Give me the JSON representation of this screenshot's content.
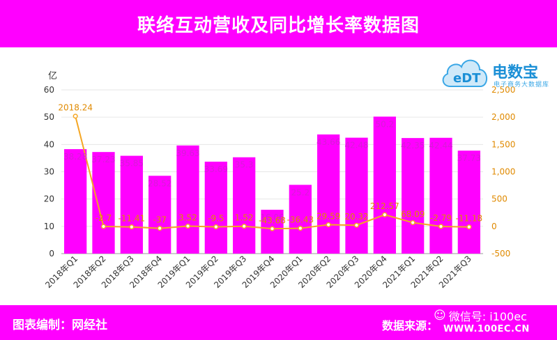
{
  "header": {
    "title": "联络互动营收及同比增长率数据图"
  },
  "footer": {
    "credit": "图表编制：网经社",
    "source": "数据来源：",
    "wechat": "微信号: i100ec",
    "website": "WWW.100EC.CN"
  },
  "logo": {
    "text": "电数宝",
    "sub": "电子商务大数据库"
  },
  "colors": {
    "bar": "#ff00ff",
    "line": "#f5a623",
    "bar_label": "#d81bd8",
    "line_label": "#e08a00",
    "brand": "#ff00ff"
  },
  "chart_data": {
    "type": "bar",
    "categories": [
      "2018年Q1",
      "2018年Q2",
      "2018年Q3",
      "2018年Q4",
      "2019年Q1",
      "2019年Q2",
      "2019年Q3",
      "2019年Q4",
      "2020年Q1",
      "2020年Q2",
      "2020年Q3",
      "2020年Q4",
      "2021年Q1",
      "2021年Q2",
      "2021年Q3"
    ],
    "series": [
      {
        "type": "bar",
        "axis": "left",
        "values": [
          38.28,
          37.23,
          35.85,
          28.52,
          39.63,
          33.69,
          35.3,
          16.06,
          25.2,
          43.66,
          42.48,
          50.2,
          42.35,
          42.44,
          37.73
        ]
      },
      {
        "type": "line",
        "axis": "right",
        "values": [
          2018.24,
          -2.7,
          -11.41,
          -37,
          3.52,
          -9.5,
          1.52,
          -43.68,
          -36.43,
          29.59,
          20.32,
          212.57,
          68.09,
          -2.79,
          -11.18
        ]
      }
    ],
    "bar_labels": [
      "38.28",
      "37.23",
      "35.85",
      "28.52",
      "39.63",
      "33.69",
      "35.3",
      "16.06",
      "25.2",
      "43.66",
      "42.48",
      "50.2",
      "42.35",
      "42.44",
      "37.73"
    ],
    "line_labels": [
      "2018.24",
      "-2.7",
      "-11.41",
      "-37",
      "3.52",
      "-9.5",
      "1.52",
      "-43.68",
      "-36.43",
      "29.59",
      "20.32",
      "212.57",
      "68.09",
      "-2.79",
      "-11.18"
    ],
    "ylabel": "亿",
    "ylim": [
      0,
      60
    ],
    "yticks": [
      0,
      10,
      20,
      30,
      40,
      50,
      60
    ],
    "ytick_labels": [
      "0",
      "10",
      "20",
      "30",
      "40",
      "50",
      "60"
    ],
    "y2lim": [
      -500,
      2500
    ],
    "y2ticks": [
      -500,
      0,
      500,
      1000,
      1500,
      2000,
      2500
    ],
    "y2tick_labels": [
      "-500",
      "0",
      "500",
      "1,000",
      "1,500",
      "2,000",
      "2,500"
    ],
    "grid": true,
    "legend": "none"
  }
}
